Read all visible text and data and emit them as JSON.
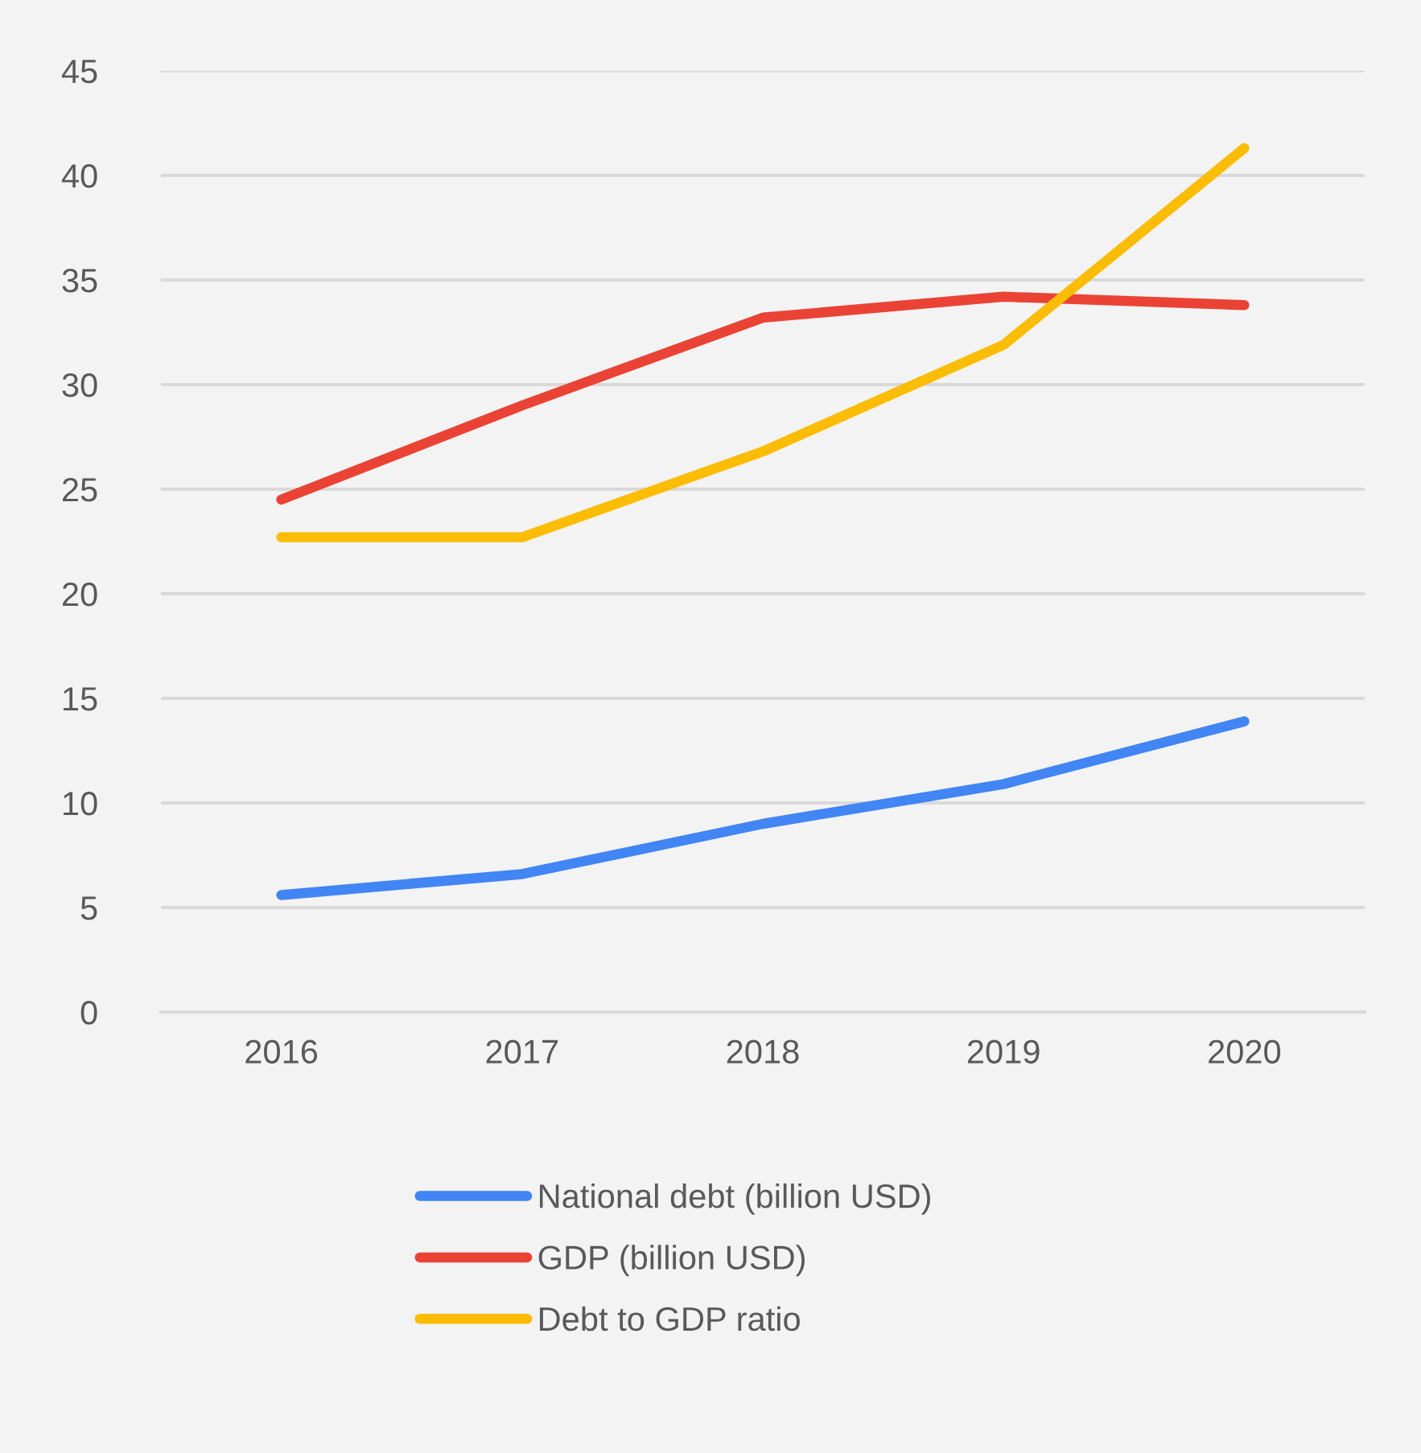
{
  "chart_data": {
    "type": "line",
    "categories": [
      "2016",
      "2017",
      "2018",
      "2019",
      "2020"
    ],
    "series": [
      {
        "name": "National debt (billion USD)",
        "color": "#4285f4",
        "values": [
          5.6,
          6.6,
          9.0,
          10.9,
          13.9
        ]
      },
      {
        "name": "GDP (billion USD)",
        "color": "#ea4335",
        "values": [
          24.5,
          29.0,
          33.2,
          34.2,
          33.8
        ]
      },
      {
        "name": "Debt to GDP ratio",
        "color": "#fbbc04",
        "values": [
          22.7,
          22.7,
          26.8,
          31.9,
          41.3
        ]
      }
    ],
    "ylim": [
      0,
      45
    ],
    "yticks": [
      0,
      5,
      10,
      15,
      20,
      25,
      30,
      35,
      40,
      45
    ],
    "grid": "y",
    "legend": "bottom",
    "marker": "none",
    "line_style": "solid"
  }
}
